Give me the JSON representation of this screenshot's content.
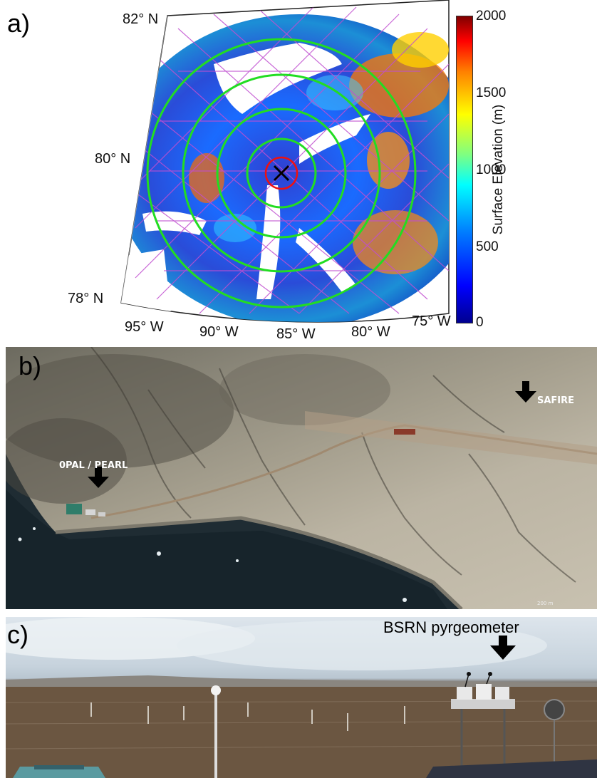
{
  "panels": {
    "a": {
      "label": "a)",
      "latitudes": [
        "82° N",
        "80° N",
        "78° N"
      ],
      "longitudes": [
        "95° W",
        "90° W",
        "85° W",
        "80° W",
        "75° W"
      ],
      "colorbar": {
        "title": "Surface Elevation (m)",
        "ticks": [
          "2000",
          "1500",
          "1000",
          "500",
          "0"
        ]
      }
    },
    "b": {
      "label": "b)",
      "annotations": [
        "SAFIRE",
        "0PAL / PEARL"
      ],
      "scale": "200 m"
    },
    "c": {
      "label": "c)",
      "annotations": [
        "BSRN pyrgeometer"
      ]
    }
  }
}
